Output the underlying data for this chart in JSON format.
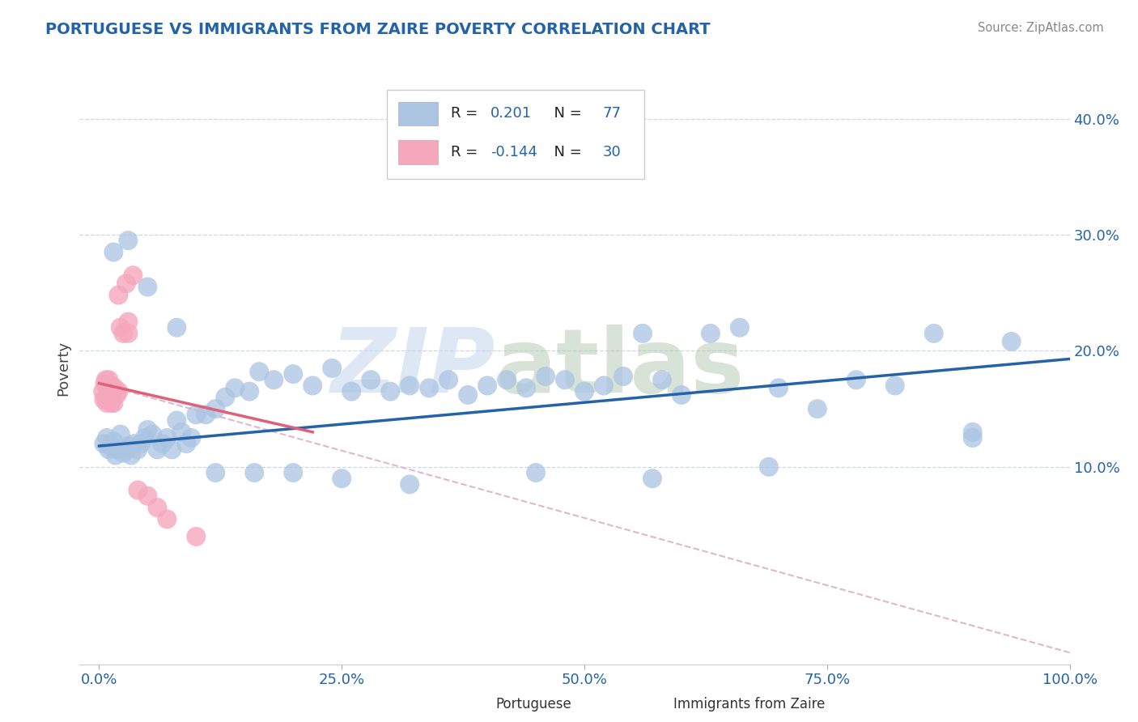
{
  "title": "PORTUGUESE VS IMMIGRANTS FROM ZAIRE POVERTY CORRELATION CHART",
  "source": "Source: ZipAtlas.com",
  "xlabel_label": "Portuguese",
  "ylabel_label": "Poverty",
  "xlabel2_label": "Immigrants from Zaire",
  "xlim": [
    -0.02,
    1.0
  ],
  "ylim": [
    -0.07,
    0.44
  ],
  "xticks": [
    0.0,
    0.25,
    0.5,
    0.75,
    1.0
  ],
  "xtick_labels": [
    "0.0%",
    "25.0%",
    "50.0%",
    "75.0%",
    "100.0%"
  ],
  "yticks": [
    0.1,
    0.2,
    0.3,
    0.4
  ],
  "ytick_labels": [
    "10.0%",
    "20.0%",
    "30.0%",
    "40.0%"
  ],
  "r_blue": 0.201,
  "n_blue": 77,
  "r_pink": -0.144,
  "n_pink": 30,
  "blue_color": "#aac4e2",
  "pink_color": "#f5a8bc",
  "blue_line_color": "#2563a8",
  "pink_line_color": "#e0607a",
  "dashed_line_color": "#e0b8c8",
  "blue_line_y0": 0.118,
  "blue_line_y1": 0.193,
  "pink_line_y0": 0.172,
  "pink_line_y1": 0.13,
  "pink_line_x0": 0.0,
  "pink_line_x1": 0.22,
  "dashed_line_x0": 0.0,
  "dashed_line_x1": 1.0,
  "dashed_line_y0": 0.172,
  "dashed_line_y1": -0.06,
  "blue_scatter_x": [
    0.005,
    0.008,
    0.01,
    0.012,
    0.015,
    0.017,
    0.02,
    0.022,
    0.025,
    0.028,
    0.03,
    0.033,
    0.036,
    0.04,
    0.043,
    0.047,
    0.05,
    0.055,
    0.06,
    0.065,
    0.07,
    0.075,
    0.08,
    0.085,
    0.09,
    0.095,
    0.1,
    0.11,
    0.12,
    0.13,
    0.14,
    0.155,
    0.165,
    0.18,
    0.2,
    0.22,
    0.24,
    0.26,
    0.28,
    0.3,
    0.32,
    0.34,
    0.36,
    0.38,
    0.4,
    0.42,
    0.44,
    0.46,
    0.48,
    0.5,
    0.52,
    0.54,
    0.56,
    0.58,
    0.6,
    0.63,
    0.66,
    0.7,
    0.74,
    0.78,
    0.82,
    0.86,
    0.9,
    0.94,
    0.9,
    0.015,
    0.03,
    0.05,
    0.08,
    0.12,
    0.16,
    0.2,
    0.25,
    0.32,
    0.45,
    0.57,
    0.69
  ],
  "blue_scatter_y": [
    0.12,
    0.125,
    0.115,
    0.118,
    0.122,
    0.11,
    0.115,
    0.128,
    0.112,
    0.115,
    0.118,
    0.11,
    0.12,
    0.115,
    0.12,
    0.125,
    0.132,
    0.128,
    0.115,
    0.12,
    0.125,
    0.115,
    0.14,
    0.13,
    0.12,
    0.125,
    0.145,
    0.145,
    0.15,
    0.16,
    0.168,
    0.165,
    0.182,
    0.175,
    0.18,
    0.17,
    0.185,
    0.165,
    0.175,
    0.165,
    0.17,
    0.168,
    0.175,
    0.162,
    0.17,
    0.175,
    0.168,
    0.178,
    0.175,
    0.165,
    0.17,
    0.178,
    0.215,
    0.175,
    0.162,
    0.215,
    0.22,
    0.168,
    0.15,
    0.175,
    0.17,
    0.215,
    0.13,
    0.208,
    0.125,
    0.285,
    0.295,
    0.255,
    0.22,
    0.095,
    0.095,
    0.095,
    0.09,
    0.085,
    0.095,
    0.09,
    0.1
  ],
  "pink_scatter_x": [
    0.004,
    0.005,
    0.006,
    0.007,
    0.007,
    0.008,
    0.008,
    0.009,
    0.01,
    0.01,
    0.011,
    0.012,
    0.013,
    0.013,
    0.015,
    0.016,
    0.018,
    0.02,
    0.02,
    0.022,
    0.025,
    0.028,
    0.03,
    0.03,
    0.035,
    0.04,
    0.05,
    0.06,
    0.07,
    0.1
  ],
  "pink_scatter_y": [
    0.165,
    0.158,
    0.172,
    0.16,
    0.175,
    0.155,
    0.168,
    0.17,
    0.162,
    0.175,
    0.16,
    0.165,
    0.155,
    0.17,
    0.155,
    0.168,
    0.162,
    0.165,
    0.248,
    0.22,
    0.215,
    0.258,
    0.225,
    0.215,
    0.265,
    0.08,
    0.075,
    0.065,
    0.055,
    0.04
  ]
}
